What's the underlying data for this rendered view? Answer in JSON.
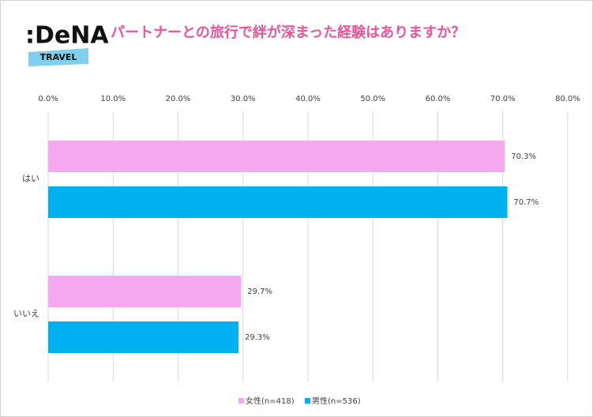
{
  "logo": {
    "name": ":DeNA",
    "sub": "TRAVEL"
  },
  "chart_data": {
    "type": "hbar",
    "title": "パートナーとの旅行で絆が深まった経験はありますか？",
    "categories": [
      "はい",
      "いいえ"
    ],
    "series": [
      {
        "name": "女性(n=418)",
        "color": "#f5a8ee",
        "values": [
          70.3,
          29.7
        ],
        "value_labels": [
          "70.3%",
          "29.7%"
        ]
      },
      {
        "name": "男性(n=536)",
        "color": "#00b0f0",
        "values": [
          70.7,
          29.3
        ],
        "value_labels": [
          "70.7%",
          "29.3%"
        ]
      }
    ],
    "xlim": [
      0,
      80
    ],
    "xticks": [
      {
        "value": 0,
        "label": "0.0%"
      },
      {
        "value": 10,
        "label": "10.0%"
      },
      {
        "value": 20,
        "label": "20.0%"
      },
      {
        "value": 30,
        "label": "30.0%"
      },
      {
        "value": 40,
        "label": "40.0%"
      },
      {
        "value": 50,
        "label": "50.0%"
      },
      {
        "value": 60,
        "label": "60.0%"
      },
      {
        "value": 70,
        "label": "70.0%"
      },
      {
        "value": 80,
        "label": "80.0%"
      }
    ],
    "grid": true,
    "legend": "bottom"
  }
}
